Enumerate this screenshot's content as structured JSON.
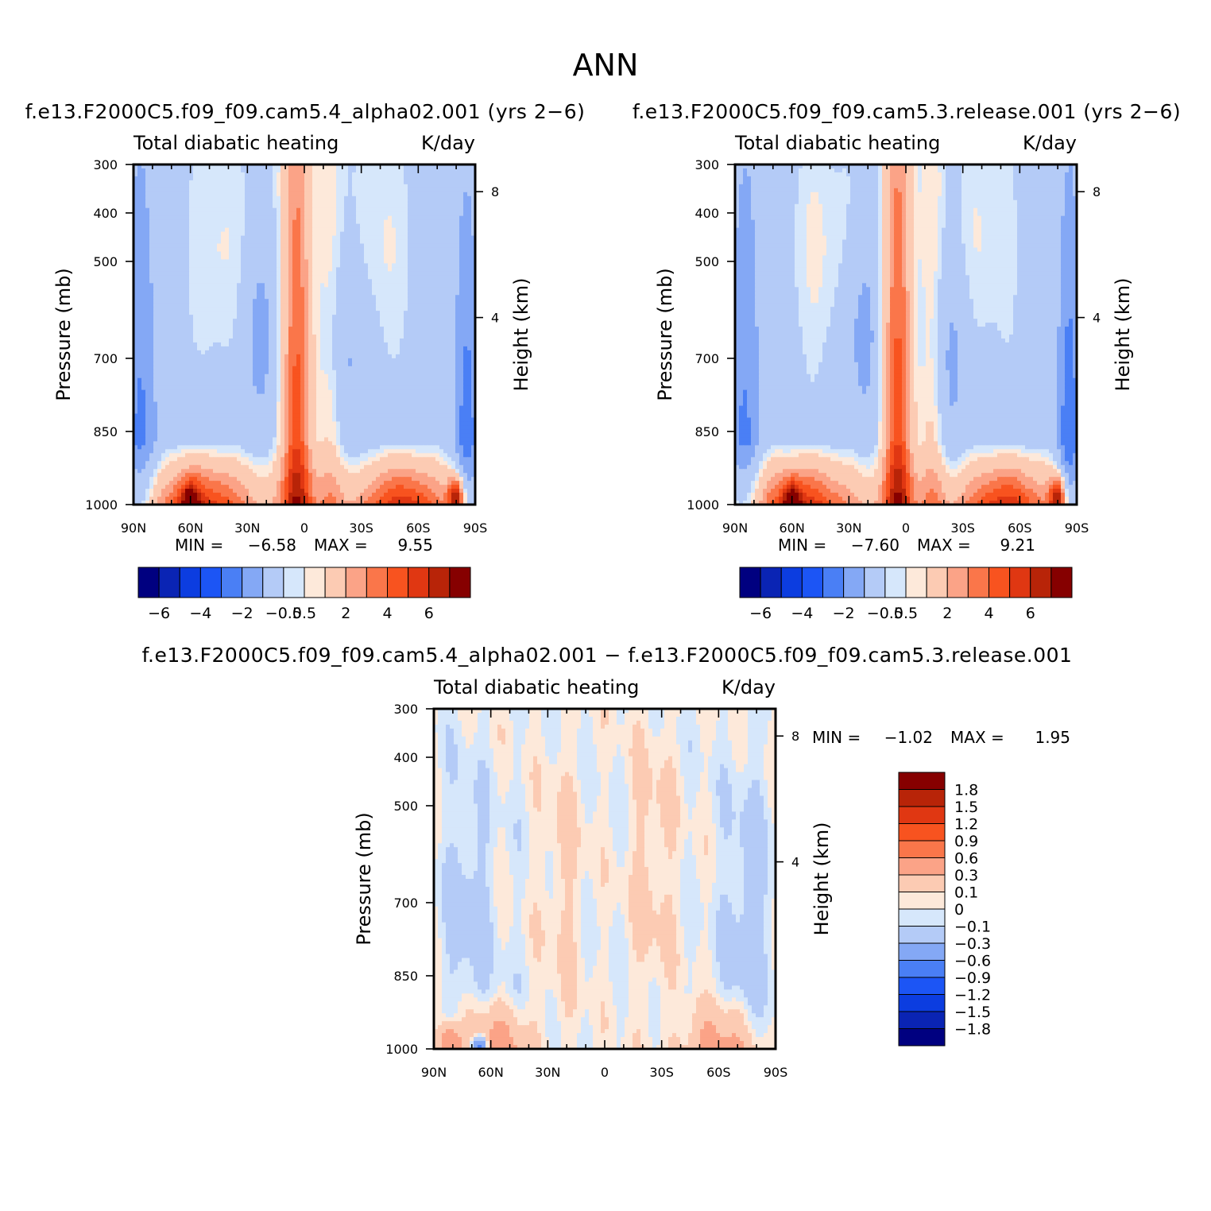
{
  "figure": {
    "title": "ANN"
  },
  "chart_data": [
    {
      "type": "heatmap",
      "title": "f.e13.F2000C5.f09_f09.cam5.4_alpha02.001 (yrs 2−6)",
      "left_subtitle": "Total diabatic heating",
      "right_subtitle": "K/day",
      "xlabel": "",
      "ylabel": "Pressure (mb)",
      "ylabel_right": "Height (km)",
      "x_ticks": [
        "90N",
        "60N",
        "30N",
        "0",
        "30S",
        "60S",
        "90S"
      ],
      "y_ticks": [
        "300",
        "400",
        "500",
        "700",
        "850",
        "1000"
      ],
      "y_right_ticks": [
        "8",
        "4"
      ],
      "stats": {
        "min_label": "MIN =",
        "min": "−6.58",
        "max_label": "MAX =",
        "max": "9.55"
      },
      "colorbar_labels": [
        "−6",
        "−4",
        "−2",
        "−0.5",
        "0.5",
        "2",
        "4",
        "6"
      ],
      "diff": false,
      "seed": 1
    },
    {
      "type": "heatmap",
      "title": "f.e13.F2000C5.f09_f09.cam5.3.release.001 (yrs 2−6)",
      "left_subtitle": "Total diabatic heating",
      "right_subtitle": "K/day",
      "xlabel": "",
      "ylabel": "Pressure (mb)",
      "ylabel_right": "Height (km)",
      "x_ticks": [
        "90N",
        "60N",
        "30N",
        "0",
        "30S",
        "60S",
        "90S"
      ],
      "y_ticks": [
        "300",
        "400",
        "500",
        "700",
        "850",
        "1000"
      ],
      "y_right_ticks": [
        "8",
        "4"
      ],
      "stats": {
        "min_label": "MIN =",
        "min": "−7.60",
        "max_label": "MAX =",
        "max": "9.21"
      },
      "colorbar_labels": [
        "−6",
        "−4",
        "−2",
        "−0.5",
        "0.5",
        "2",
        "4",
        "6"
      ],
      "diff": false,
      "seed": 2
    },
    {
      "type": "heatmap",
      "title": "f.e13.F2000C5.f09_f09.cam5.4_alpha02.001 − f.e13.F2000C5.f09_f09.cam5.3.release.001",
      "left_subtitle": "Total diabatic heating",
      "right_subtitle": "K/day",
      "xlabel": "",
      "ylabel": "Pressure (mb)",
      "ylabel_right": "Height (km)",
      "x_ticks": [
        "90N",
        "60N",
        "30N",
        "0",
        "30S",
        "60S",
        "90S"
      ],
      "y_ticks": [
        "300",
        "400",
        "500",
        "700",
        "850",
        "1000"
      ],
      "y_right_ticks": [
        "8",
        "4"
      ],
      "stats": {
        "min_label": "MIN =",
        "min": "−1.02",
        "max_label": "MAX =",
        "max": "1.95"
      },
      "colorbar_labels": [
        "1.8",
        "1.5",
        "1.2",
        "0.9",
        "0.6",
        "0.3",
        "0.1",
        "0",
        "−0.1",
        "−0.3",
        "−0.6",
        "−0.9",
        "−1.2",
        "−1.5",
        "−1.8"
      ],
      "diff": true,
      "seed": 3
    }
  ],
  "palette": [
    "#000080",
    "#0a24b4",
    "#0c3de0",
    "#1c55f5",
    "#4a7ff5",
    "#84a8f5",
    "#b4cbf7",
    "#d6e7fb",
    "#fde9da",
    "#fccbb3",
    "#fba387",
    "#fa764a",
    "#f8531f",
    "#e03712",
    "#b82408",
    "#860000"
  ]
}
